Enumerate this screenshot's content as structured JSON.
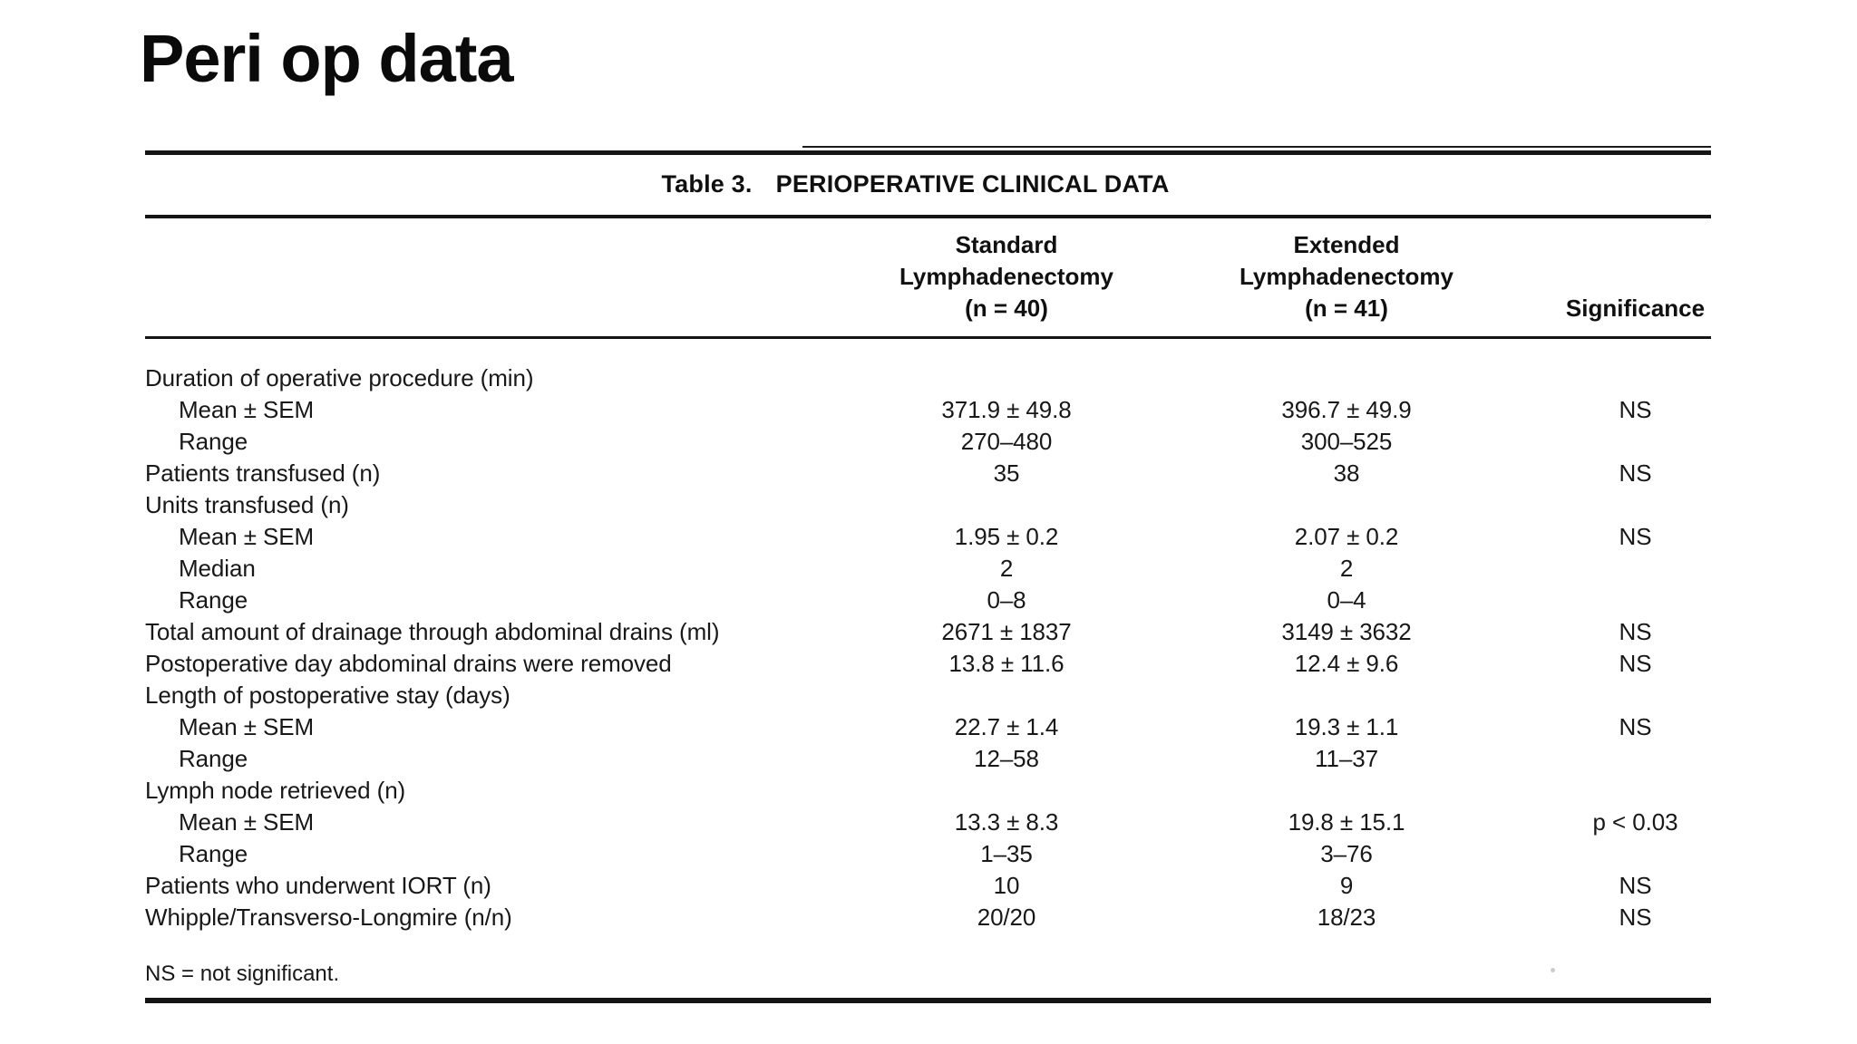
{
  "slide": {
    "title": "Peri op data"
  },
  "table": {
    "caption_label": "Table 3.",
    "caption_title": "PERIOPERATIVE CLINICAL DATA",
    "columns": {
      "standard": {
        "l1": "Standard",
        "l2": "Lymphadenectomy",
        "l3": "(n = 40)"
      },
      "extended": {
        "l1": "Extended",
        "l2": "Lymphadenectomy",
        "l3": "(n = 41)"
      },
      "significance": "Significance"
    },
    "rows": [
      {
        "label": "Duration of operative procedure (min)",
        "indent": false,
        "standard": "",
        "extended": "",
        "significance": ""
      },
      {
        "label": "Mean ± SEM",
        "indent": true,
        "standard": "371.9 ± 49.8",
        "extended": "396.7 ± 49.9",
        "significance": "NS"
      },
      {
        "label": "Range",
        "indent": true,
        "standard": "270–480",
        "extended": "300–525",
        "significance": ""
      },
      {
        "label": "Patients transfused (n)",
        "indent": false,
        "standard": "35",
        "extended": "38",
        "significance": "NS"
      },
      {
        "label": "Units transfused (n)",
        "indent": false,
        "standard": "",
        "extended": "",
        "significance": ""
      },
      {
        "label": "Mean ± SEM",
        "indent": true,
        "standard": "1.95 ± 0.2",
        "extended": "2.07 ± 0.2",
        "significance": "NS"
      },
      {
        "label": "Median",
        "indent": true,
        "standard": "2",
        "extended": "2",
        "significance": ""
      },
      {
        "label": "Range",
        "indent": true,
        "standard": "0–8",
        "extended": "0–4",
        "significance": ""
      },
      {
        "label": "Total amount of drainage through abdominal drains (ml)",
        "indent": false,
        "standard": "2671 ± 1837",
        "extended": "3149 ± 3632",
        "significance": "NS"
      },
      {
        "label": "Postoperative day abdominal drains were removed",
        "indent": false,
        "standard": "13.8 ± 11.6",
        "extended": "12.4 ± 9.6",
        "significance": "NS"
      },
      {
        "label": "Length of postoperative stay (days)",
        "indent": false,
        "standard": "",
        "extended": "",
        "significance": ""
      },
      {
        "label": "Mean ± SEM",
        "indent": true,
        "standard": "22.7 ± 1.4",
        "extended": "19.3 ± 1.1",
        "significance": "NS"
      },
      {
        "label": "Range",
        "indent": true,
        "standard": "12–58",
        "extended": "11–37",
        "significance": ""
      },
      {
        "label": "Lymph node retrieved (n)",
        "indent": false,
        "standard": "",
        "extended": "",
        "significance": ""
      },
      {
        "label": "Mean ± SEM",
        "indent": true,
        "standard": "13.3 ± 8.3",
        "extended": "19.8 ± 15.1",
        "significance": "p < 0.03"
      },
      {
        "label": "Range",
        "indent": true,
        "standard": "1–35",
        "extended": "3–76",
        "significance": ""
      },
      {
        "label": "Patients who underwent IORT (n)",
        "indent": false,
        "standard": "10",
        "extended": "9",
        "significance": "NS"
      },
      {
        "label": "Whipple/Transverso-Longmire (n/n)",
        "indent": false,
        "standard": "20/20",
        "extended": "18/23",
        "significance": "NS"
      }
    ],
    "footnote": "NS = not significant."
  },
  "colors": {
    "background": "#ffffff",
    "ink": "#181818",
    "rule": "#151515"
  }
}
